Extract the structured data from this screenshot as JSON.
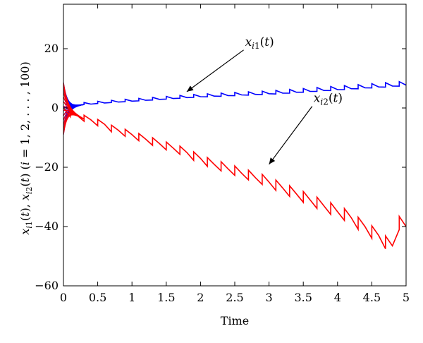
{
  "chart_data": {
    "type": "line",
    "xlabel": "Time",
    "ylabel": "x_i1(t), x_i2(t) (i = 1, 2, . . . , 100)",
    "xlim": [
      0,
      5
    ],
    "ylim": [
      -60,
      35
    ],
    "x_ticks": [
      "0",
      "0.5",
      "1",
      "1.5",
      "2",
      "2.5",
      "3",
      "3.5",
      "4",
      "4.5",
      "5"
    ],
    "y_ticks": [
      "20",
      "0",
      "−20",
      "−40",
      "−60"
    ],
    "grid": false,
    "series": [
      {
        "name": "x_i1(t)",
        "color": "#0000ff",
        "x": [
          0.0,
          0.2,
          0.4,
          0.6,
          0.8,
          1.0,
          1.2,
          1.4,
          1.6,
          1.8,
          2.0,
          2.2,
          2.4,
          2.6,
          2.8,
          3.0,
          3.2,
          3.4,
          3.6,
          3.8,
          4.0,
          4.2,
          4.4,
          4.6,
          4.8,
          5.0
        ],
        "y": [
          0.0,
          0.8,
          1.3,
          1.7,
          2.0,
          2.3,
          2.6,
          2.9,
          3.2,
          3.5,
          3.8,
          4.0,
          4.2,
          4.4,
          4.6,
          4.8,
          5.0,
          5.3,
          5.6,
          5.9,
          6.2,
          6.5,
          6.8,
          7.1,
          7.4,
          7.7
        ]
      },
      {
        "name": "x_i2(t)",
        "color": "#ff0000",
        "x": [
          0.0,
          0.2,
          0.4,
          0.6,
          0.8,
          1.0,
          1.2,
          1.4,
          1.6,
          1.8,
          2.0,
          2.2,
          2.4,
          2.6,
          2.8,
          3.0,
          3.2,
          3.4,
          3.6,
          3.8,
          4.0,
          4.2,
          4.4,
          4.6,
          4.8,
          5.0
        ],
        "y": [
          0.0,
          -2.5,
          -4.0,
          -5.5,
          -7.5,
          -9.0,
          -10.5,
          -12.0,
          -13.5,
          -15.0,
          -17.0,
          -19.0,
          -20.5,
          -22.0,
          -23.5,
          -25.0,
          -27.0,
          -29.0,
          -31.0,
          -33.0,
          -35.0,
          -37.0,
          -40.0,
          -43.0,
          -46.5,
          -40.0
        ]
      }
    ],
    "annotations": [
      {
        "series": 0,
        "label_x": 2.65,
        "label_y": 21,
        "arrow_to_x": 1.8,
        "arrow_to_y": 5.5
      },
      {
        "series": 1,
        "label_x": 3.65,
        "label_y": 2,
        "arrow_to_x": 3.0,
        "arrow_to_y": -19.0
      }
    ]
  }
}
